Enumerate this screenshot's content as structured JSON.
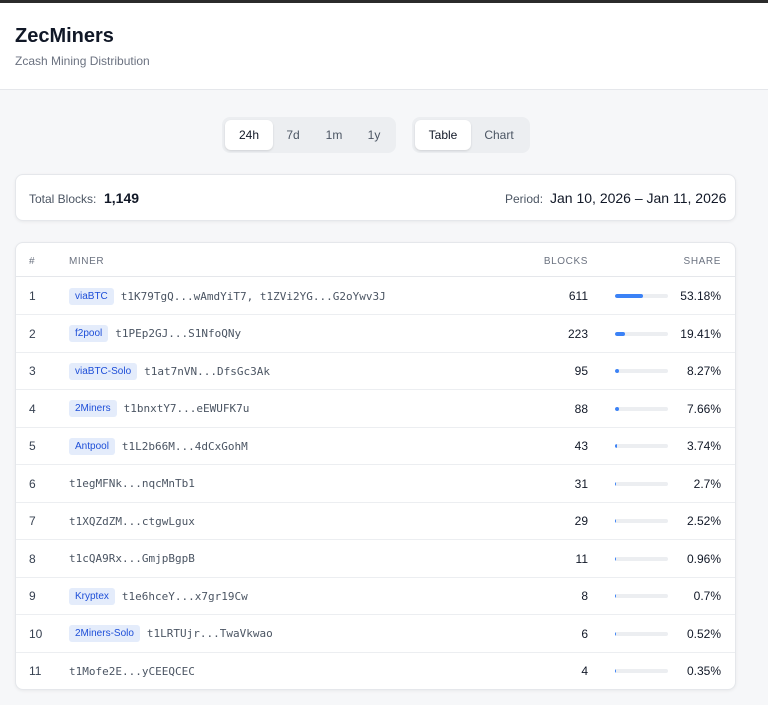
{
  "header": {
    "title": "ZecMiners",
    "subtitle": "Zcash Mining Distribution"
  },
  "period_tabs": [
    {
      "label": "24h",
      "active": true
    },
    {
      "label": "7d",
      "active": false
    },
    {
      "label": "1m",
      "active": false
    },
    {
      "label": "1y",
      "active": false
    }
  ],
  "view_tabs": [
    {
      "label": "Table",
      "active": true
    },
    {
      "label": "Chart",
      "active": false
    }
  ],
  "summary": {
    "total_label": "Total Blocks:",
    "total_value": "1,149",
    "period_label": "Period:",
    "period_value": "Jan 10, 2026 – Jan 11, 2026"
  },
  "table": {
    "headers": {
      "rank": "#",
      "miner": "MINER",
      "blocks": "BLOCKS",
      "share": "SHARE"
    },
    "rows": [
      {
        "rank": "1",
        "pool": "viaBTC",
        "address": "t1K79TgQ...wAmdYiT7, t1ZVi2YG...G2oYwv3J",
        "blocks": "611",
        "share": "53.18%",
        "share_value": 53.18
      },
      {
        "rank": "2",
        "pool": "f2pool",
        "address": "t1PEp2GJ...S1NfoQNy",
        "blocks": "223",
        "share": "19.41%",
        "share_value": 19.41
      },
      {
        "rank": "3",
        "pool": "viaBTC-Solo",
        "address": "t1at7nVN...DfsGc3Ak",
        "blocks": "95",
        "share": "8.27%",
        "share_value": 8.27
      },
      {
        "rank": "4",
        "pool": "2Miners",
        "address": "t1bnxtY7...eEWUFK7u",
        "blocks": "88",
        "share": "7.66%",
        "share_value": 7.66
      },
      {
        "rank": "5",
        "pool": "Antpool",
        "address": "t1L2b66M...4dCxGohM",
        "blocks": "43",
        "share": "3.74%",
        "share_value": 3.74
      },
      {
        "rank": "6",
        "pool": "",
        "address": "t1egMFNk...nqcMnTb1",
        "blocks": "31",
        "share": "2.7%",
        "share_value": 2.7
      },
      {
        "rank": "7",
        "pool": "",
        "address": "t1XQZdZM...ctgwLgux",
        "blocks": "29",
        "share": "2.52%",
        "share_value": 2.52
      },
      {
        "rank": "8",
        "pool": "",
        "address": "t1cQA9Rx...GmjpBgpB",
        "blocks": "11",
        "share": "0.96%",
        "share_value": 0.96
      },
      {
        "rank": "9",
        "pool": "Kryptex",
        "address": "t1e6hceY...x7gr19Cw",
        "blocks": "8",
        "share": "0.7%",
        "share_value": 0.7
      },
      {
        "rank": "10",
        "pool": "2Miners-Solo",
        "address": "t1LRTUjr...TwaVkwao",
        "blocks": "6",
        "share": "0.52%",
        "share_value": 0.52
      },
      {
        "rank": "11",
        "pool": "",
        "address": "t1Mofe2E...yCEEQCEC",
        "blocks": "4",
        "share": "0.35%",
        "share_value": 0.35
      }
    ]
  },
  "colors": {
    "accent": "#3b82f6",
    "badge_bg": "#e4ecfb",
    "badge_text": "#1d4ed8"
  }
}
